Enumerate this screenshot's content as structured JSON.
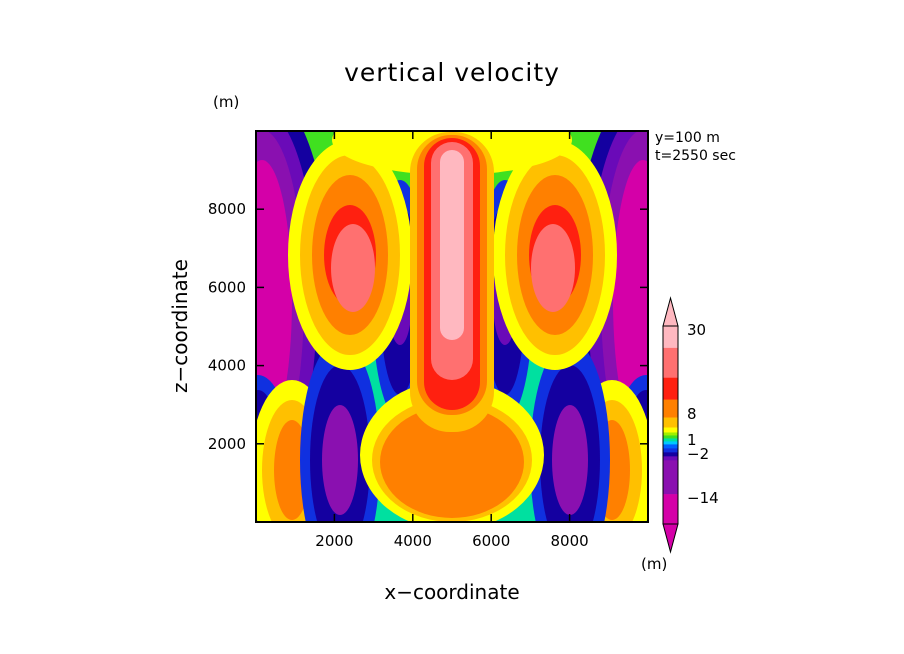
{
  "chart_data": {
    "type": "heatmap",
    "title": "vertical velocity",
    "xlabel": "x−coordinate",
    "ylabel": "z−coordinate",
    "yunit": "(m)",
    "annotations": [
      "y=100 m",
      "t=2550 sec"
    ],
    "xlim": [
      0,
      10000
    ],
    "ylim": [
      0,
      10000
    ],
    "x_ticks": [
      "2000",
      "4000",
      "6000",
      "8000"
    ],
    "y_ticks": [
      "2000",
      "4000",
      "6000",
      "8000"
    ],
    "colorbar": {
      "unit": "(m)",
      "labels": [
        "30",
        "8",
        "1",
        "−2",
        "−14"
      ],
      "colors": [
        "#d400a8",
        "#8a10b0",
        "#6a0ab8",
        "#1400a0",
        "#1030e0",
        "#0060ff",
        "#00c8ff",
        "#00e0a0",
        "#40e020",
        "#a0f000",
        "#ffff00",
        "#ffc000",
        "#ff8000",
        "#ff2010",
        "#ff7070",
        "#ffb8c0"
      ]
    }
  }
}
